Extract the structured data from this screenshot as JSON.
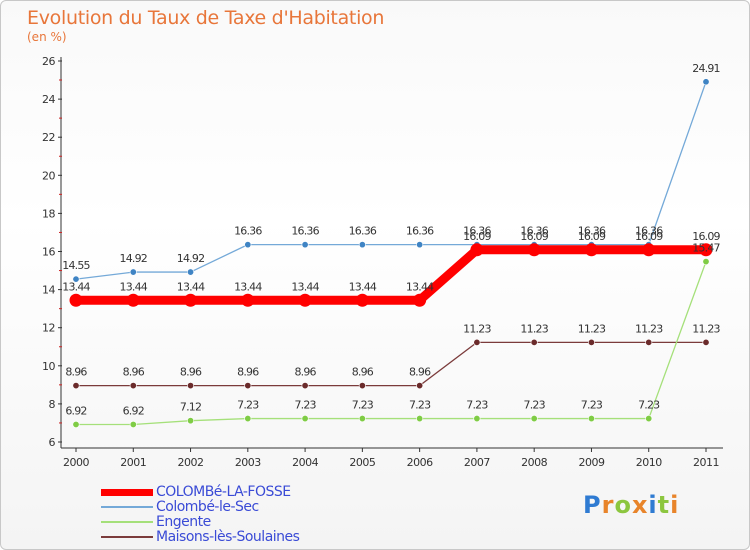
{
  "title": "Evolution du Taux de Taxe d'Habitation",
  "subtitle": "(en %)",
  "logo": {
    "letters": [
      "P",
      "r",
      "o",
      "x",
      "i",
      "t",
      "i"
    ],
    "colors": [
      "#2f7bd2",
      "#e8842a",
      "#8cc63f",
      "#e8842a",
      "#2f7bd2",
      "#8cc63f",
      "#e8842a"
    ]
  },
  "chart_data": {
    "type": "line",
    "title": "Evolution du Taux de Taxe d'Habitation",
    "ylabel": "(en %)",
    "xlabel": "",
    "x": [
      "2000",
      "2001",
      "2002",
      "2003",
      "2004",
      "2005",
      "2006",
      "2007",
      "2008",
      "2009",
      "2010",
      "2011"
    ],
    "ylim": [
      6,
      26
    ],
    "yticks": [
      "6",
      "8",
      "10",
      "12",
      "14",
      "16",
      "18",
      "20",
      "22",
      "24",
      "26"
    ],
    "grid": false,
    "legend_position": "bottom-left",
    "series": [
      {
        "name": "COLOMBé-LA-FOSSE",
        "color": "#ff0000",
        "values": [
          13.44,
          13.44,
          13.44,
          13.44,
          13.44,
          13.44,
          13.44,
          16.09,
          16.09,
          16.09,
          16.09,
          16.09
        ],
        "labels": [
          "13.44",
          "13.44",
          "13.44",
          "13.44",
          "13.44",
          "13.44",
          "13.44",
          "16.09",
          "16.09",
          "16.09",
          "16.09",
          "16.09"
        ],
        "thick": true
      },
      {
        "name": "Colombé-le-Sec",
        "color": "#74a9d8",
        "marker": "#3f84c4",
        "values": [
          14.55,
          14.92,
          14.92,
          16.36,
          16.36,
          16.36,
          16.36,
          16.36,
          16.36,
          16.36,
          16.36,
          24.91
        ],
        "labels": [
          "14.55",
          "14.92",
          "14.92",
          "16.36",
          "16.36",
          "16.36",
          "16.36",
          "16.36",
          "16.36",
          "16.36",
          "16.36",
          "24.91"
        ]
      },
      {
        "name": "Engente",
        "color": "#a5e07a",
        "marker": "#7fcc45",
        "values": [
          6.92,
          6.92,
          7.12,
          7.23,
          7.23,
          7.23,
          7.23,
          7.23,
          7.23,
          7.23,
          7.23,
          15.47
        ],
        "labels": [
          "6.92",
          "6.92",
          "7.12",
          "7.23",
          "7.23",
          "7.23",
          "7.23",
          "7.23",
          "7.23",
          "7.23",
          "7.23",
          "15.47"
        ]
      },
      {
        "name": "Maisons-lès-Soulaines",
        "color": "#7b3b3b",
        "marker": "#6b2b2b",
        "values": [
          8.96,
          8.96,
          8.96,
          8.96,
          8.96,
          8.96,
          8.96,
          11.23,
          11.23,
          11.23,
          11.23,
          11.23
        ],
        "labels": [
          "8.96",
          "8.96",
          "8.96",
          "8.96",
          "8.96",
          "8.96",
          "8.96",
          "11.23",
          "11.23",
          "11.23",
          "11.23",
          "11.23"
        ]
      }
    ]
  }
}
